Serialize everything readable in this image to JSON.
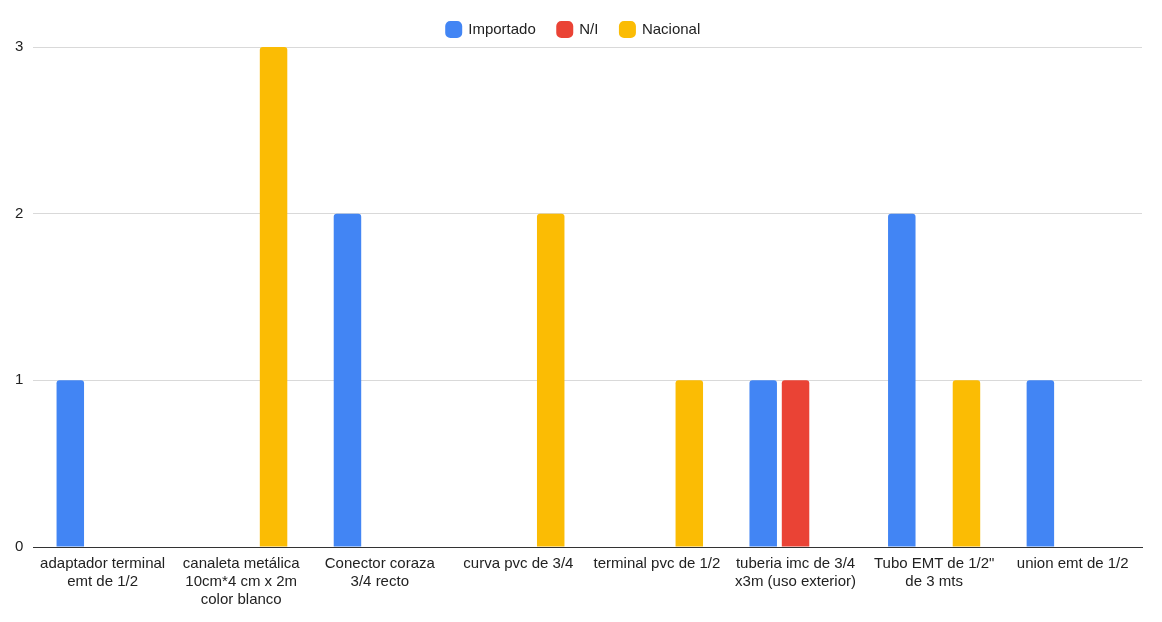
{
  "chart_data": {
    "type": "bar",
    "categories": [
      "adaptador terminal emt de 1/2",
      "canaleta metálica 10cm*4 cm x 2m color blanco",
      "Conector coraza 3/4 recto",
      "curva pvc de 3/4",
      "terminal pvc de 1/2",
      "tuberia imc de 3/4 x3m (uso exterior)",
      "Tubo EMT de 1/2\" de 3 mts",
      "union emt de 1/2"
    ],
    "series": [
      {
        "name": "Importado",
        "color": "#4285f4",
        "values": [
          1,
          null,
          2,
          null,
          null,
          1,
          2,
          1
        ]
      },
      {
        "name": "N/I",
        "color": "#ea4335",
        "values": [
          null,
          null,
          null,
          null,
          null,
          1,
          null,
          null
        ]
      },
      {
        "name": "Nacional",
        "color": "#fbbc04",
        "values": [
          null,
          3,
          null,
          2,
          1,
          null,
          1,
          null
        ]
      }
    ],
    "ylim": [
      0,
      3
    ],
    "yticks": [
      0,
      1,
      2,
      3
    ],
    "grid": "y",
    "legend": "top"
  }
}
